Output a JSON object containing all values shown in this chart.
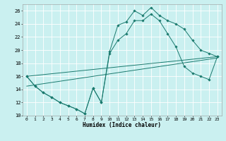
{
  "xlabel": "Humidex (Indice chaleur)",
  "bg_color": "#caf0f0",
  "grid_color": "#ffffff",
  "line_color": "#1a7a6e",
  "xlim_min": 0,
  "xlim_max": 23,
  "ylim_min": 10,
  "ylim_max": 27,
  "xticks": [
    0,
    1,
    2,
    3,
    4,
    5,
    6,
    7,
    8,
    9,
    10,
    11,
    12,
    13,
    14,
    15,
    16,
    17,
    18,
    19,
    20,
    21,
    22,
    23
  ],
  "yticks": [
    10,
    12,
    14,
    16,
    18,
    20,
    22,
    24,
    26
  ],
  "curve1_x": [
    0,
    1,
    2,
    3,
    4,
    5,
    6,
    7,
    8,
    9,
    10,
    11,
    12,
    13,
    14,
    15,
    16,
    17,
    18,
    19,
    20,
    21,
    22,
    23
  ],
  "curve1_y": [
    16.0,
    14.5,
    13.5,
    12.8,
    12.0,
    11.5,
    11.0,
    10.3,
    14.2,
    12.0,
    19.8,
    23.8,
    24.3,
    26.0,
    25.3,
    26.5,
    25.3,
    24.5,
    24.0,
    23.2,
    21.5,
    20.0,
    19.5,
    19.0
  ],
  "curve2_x": [
    0,
    1,
    2,
    3,
    4,
    5,
    6,
    7,
    8,
    9,
    10,
    11,
    12,
    13,
    14,
    15,
    16,
    17,
    18,
    19,
    20,
    21,
    22,
    23
  ],
  "curve2_y": [
    16.0,
    14.5,
    13.5,
    12.8,
    12.0,
    11.5,
    11.0,
    10.3,
    14.2,
    12.0,
    19.5,
    21.5,
    22.5,
    24.5,
    24.5,
    25.5,
    24.5,
    22.5,
    20.5,
    17.5,
    16.5,
    16.0,
    15.5,
    19.0
  ],
  "trend1_x": [
    0,
    23
  ],
  "trend1_y": [
    16.0,
    19.0
  ],
  "trend2_x": [
    0,
    23
  ],
  "trend2_y": [
    14.5,
    18.8
  ]
}
